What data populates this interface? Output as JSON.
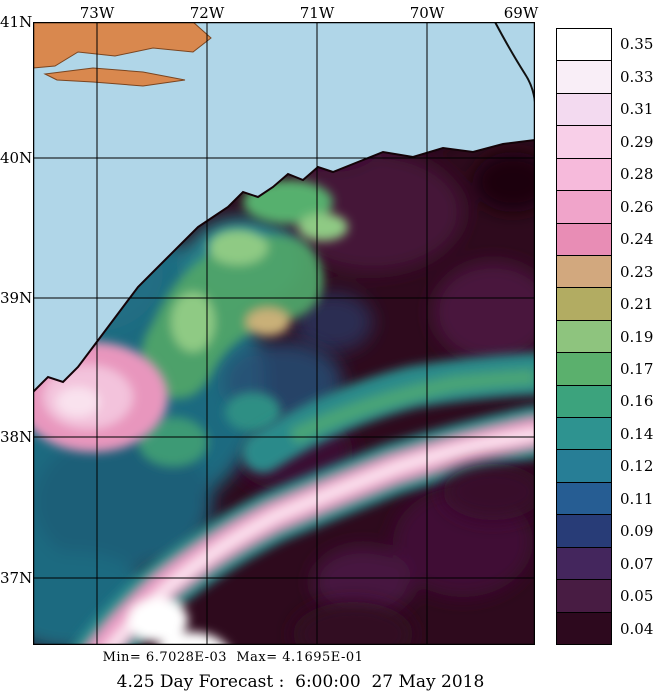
{
  "title": "4.25 Day Forecast :  6:00:00  27 May 2018",
  "stats_line": "Min= 6.7028E-03  Max= 4.1695E-01",
  "axes": {
    "lon": [
      "73W",
      "72W",
      "71W",
      "70W",
      "69W"
    ],
    "lat": [
      "41N",
      "40N",
      "39N",
      "38N",
      "37N"
    ]
  },
  "colorbar": {
    "values": [
      "0.35",
      "0.33",
      "0.31",
      "0.29",
      "0.28",
      "0.26",
      "0.24",
      "0.23",
      "0.21",
      "0.19",
      "0.17",
      "0.16",
      "0.14",
      "0.12",
      "0.11",
      "0.09",
      "0.07",
      "0.05",
      "0.04"
    ],
    "colors": [
      "#ffffff",
      "#f9eef7",
      "#f3daf0",
      "#f8cfe8",
      "#f6badb",
      "#f0a4ca",
      "#e88db5",
      "#d2a87e",
      "#b2ac62",
      "#8ec47e",
      "#5bb06d",
      "#3ca37d",
      "#2e9390",
      "#277e96",
      "#265d93",
      "#283c77",
      "#44265d",
      "#481c43",
      "#2d091e"
    ]
  },
  "map_colors": {
    "land": "#d9884e",
    "masked_water": "#b0d6e8",
    "field_low_base": "#2e0a1d",
    "grid_line": "#000000"
  },
  "chart_data": {
    "type": "heatmap",
    "title": "4.25 Day Forecast :  6:00:00  27 May 2018",
    "x_ticks": [
      "73W",
      "72W",
      "71W",
      "70W",
      "69W"
    ],
    "y_ticks": [
      "41N",
      "40N",
      "39N",
      "38N",
      "37N"
    ],
    "x_range_deg_west": [
      73.6,
      69.0
    ],
    "y_range_deg_north": [
      36.5,
      41.0
    ],
    "colorbar_levels": [
      0.04,
      0.05,
      0.07,
      0.09,
      0.11,
      0.12,
      0.14,
      0.16,
      0.17,
      0.19,
      0.21,
      0.23,
      0.24,
      0.26,
      0.28,
      0.29,
      0.31,
      0.33,
      0.35
    ],
    "data_min": 0.0067028,
    "data_max": 0.41695,
    "min_label": "Min= 6.7028E-03",
    "max_label": "Max= 4.1695E-01",
    "legend_position": "right",
    "grid": true,
    "features": [
      "bright white/pink high-value sinuous band (Gulf Stream front) entering at the bottom-left and running northeast then east, exiting the right edge near 38N",
      "white maximum core within the band near the bottom-left corner around 72.5W 36.6N",
      "teal and green mesoscale field (0.12-0.21) over the shelf in the left-center of the domain between 37.5N and 39.8N",
      "green ring/eddy structures around 72.5W 39N with a small tan patch (~0.23) near 71.5W 38.9N",
      "pink high patch (~0.26-0.31) at the left edge near 73.3W 38.3N",
      "teal/green filament running east toward the right edge just north of the main band near 38.5N",
      "very dark maroon low values (~0.04-0.07) in the upper-right and lower-right quadrants",
      "tan land (Long Island / southern New England) in the upper-left corner",
      "light blue masked water outside the model domain north of the jagged boundary",
      "thin black coastline curve crossing the top-right corner"
    ]
  }
}
